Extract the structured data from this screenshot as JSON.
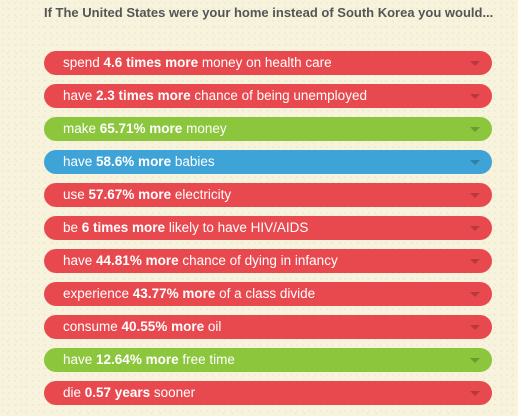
{
  "heading": "If The United States were your home instead of South Korea you would...",
  "colors": {
    "red": "#e8494f",
    "green": "#8cc63c",
    "blue": "#3ea3d7",
    "background": "#f7f3dc",
    "heading_text": "#555555"
  },
  "items": [
    {
      "color": "red",
      "pre": "spend ",
      "bold": "4.6 times more",
      "post": " money on health care"
    },
    {
      "color": "red",
      "pre": "have ",
      "bold": "2.3 times more",
      "post": " chance of being unemployed"
    },
    {
      "color": "green",
      "pre": "make ",
      "bold": "65.71% more",
      "post": " money"
    },
    {
      "color": "blue",
      "pre": "have ",
      "bold": "58.6% more",
      "post": " babies"
    },
    {
      "color": "red",
      "pre": "use ",
      "bold": "57.67% more",
      "post": " electricity"
    },
    {
      "color": "red",
      "pre": "be ",
      "bold": "6 times more",
      "post": " likely to have HIV/AIDS"
    },
    {
      "color": "red",
      "pre": "have ",
      "bold": "44.81% more",
      "post": " chance of dying in infancy"
    },
    {
      "color": "red",
      "pre": "experience ",
      "bold": "43.77% more",
      "post": " of a class divide"
    },
    {
      "color": "red",
      "pre": "consume ",
      "bold": "40.55% more",
      "post": " oil"
    },
    {
      "color": "green",
      "pre": "have ",
      "bold": "12.64% more",
      "post": " free time"
    },
    {
      "color": "red",
      "pre": "die ",
      "bold": "0.57 years",
      "post": " sooner"
    }
  ],
  "expand_icon": "chevron-down-icon"
}
